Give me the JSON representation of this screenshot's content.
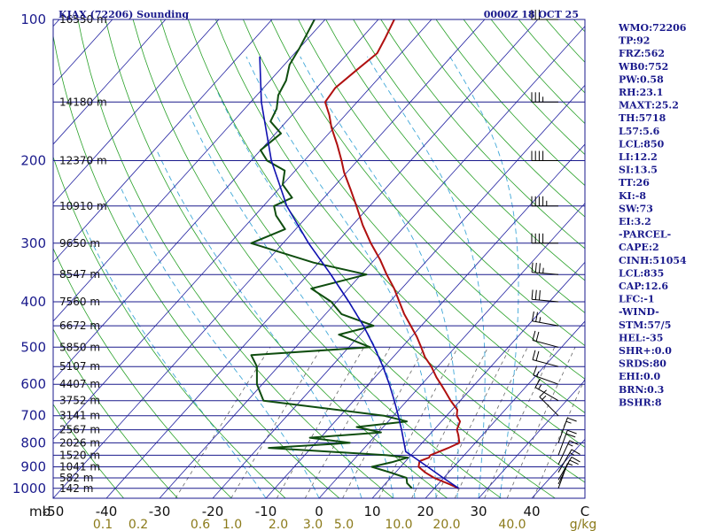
{
  "header": {
    "station": "KJAX (72206) Sounding",
    "time": "0000Z 18 OCT 25"
  },
  "indices": [
    "WMO:72206",
    "TP:92",
    "FRZ:562",
    "WB0:752",
    "PW:0.58",
    "RH:23.1",
    "MAXT:25.2",
    "TH:5718",
    "L57:5.6",
    "LCL:850",
    "LI:12.2",
    "SI:13.5",
    "TT:26",
    "KI:-8",
    "SW:73",
    "EI:3.2",
    "-PARCEL-",
    "CAPE:2",
    "CINH:51054",
    "LCL:835",
    "CAP:12.6",
    "LFC:-1",
    "-WIND-",
    "STM:57/5",
    "HEL:-35",
    "SHR+:0.0",
    "SRDS:80",
    "EHI:0.0",
    "BRN:0.3",
    "BSHR:8"
  ],
  "colors": {
    "temperature": "#b01010",
    "dewpoint": "#0f4d0f",
    "parcel": "#1010b0",
    "isobar": "#1a1a8c",
    "isotherm": "#2020a0",
    "dry_adiabat": "#28a028",
    "moist_adiabat": "#40a8d8",
    "mixing_ratio": "#666666"
  },
  "chart_data": {
    "type": "line",
    "title": "KJAX (72206) Sounding",
    "pressure_labels": [
      {
        "p": 100,
        "label": "100"
      },
      {
        "p": 200,
        "label": "200"
      },
      {
        "p": 300,
        "label": "300"
      },
      {
        "p": 400,
        "label": "400"
      },
      {
        "p": 500,
        "label": "500"
      },
      {
        "p": 600,
        "label": "600"
      },
      {
        "p": 700,
        "label": "700"
      },
      {
        "p": 800,
        "label": "800"
      },
      {
        "p": 900,
        "label": "900"
      },
      {
        "p": 1000,
        "label": "1000"
      }
    ],
    "height_labels": [
      {
        "p": 100,
        "label": "16550 m"
      },
      {
        "p": 150,
        "label": "14180 m"
      },
      {
        "p": 200,
        "label": "12370 m"
      },
      {
        "p": 250,
        "label": "10910 m"
      },
      {
        "p": 300,
        "label": "9650 m"
      },
      {
        "p": 350,
        "label": "8547 m"
      },
      {
        "p": 400,
        "label": "7560 m"
      },
      {
        "p": 450,
        "label": "6672 m"
      },
      {
        "p": 500,
        "label": "5850 m"
      },
      {
        "p": 550,
        "label": "5107 m"
      },
      {
        "p": 600,
        "label": "4407 m"
      },
      {
        "p": 650,
        "label": "3752 m"
      },
      {
        "p": 700,
        "label": "3141 m"
      },
      {
        "p": 750,
        "label": "2567 m"
      },
      {
        "p": 800,
        "label": "2026 m"
      },
      {
        "p": 850,
        "label": "1520 m"
      },
      {
        "p": 900,
        "label": "1041 m"
      },
      {
        "p": 950,
        "label": "582 m"
      },
      {
        "p": 1000,
        "label": "142 m"
      }
    ],
    "pressure_unit": "mb",
    "temperature_ticks": [
      -50,
      -40,
      -30,
      -20,
      -10,
      0,
      10,
      20,
      30,
      40
    ],
    "temperature_tick_labels": [
      "-50",
      "-40",
      "-30",
      "-20",
      "-10",
      "0",
      "10",
      "20",
      "30",
      "40"
    ],
    "temperature_unit": "C",
    "mixing_ratio_labels": [
      "0.1",
      "0.2",
      "0.6",
      "1.0",
      "2.0",
      "3.0",
      "5.0",
      "10.0",
      "20.0",
      "40.0"
    ],
    "mixing_ratio_unit": "g/kg",
    "series": [
      {
        "key": "temperature",
        "points": [
          {
            "p": 1000,
            "t": 24.6
          },
          {
            "p": 975,
            "t": 21.5
          },
          {
            "p": 950,
            "t": 18.2
          },
          {
            "p": 925,
            "t": 15.6
          },
          {
            "p": 900,
            "t": 13.4
          },
          {
            "p": 875,
            "t": 12.6
          },
          {
            "p": 860,
            "t": 13.8
          },
          {
            "p": 850,
            "t": 13.6
          },
          {
            "p": 820,
            "t": 15.8
          },
          {
            "p": 800,
            "t": 17.0
          },
          {
            "p": 770,
            "t": 15.5
          },
          {
            "p": 750,
            "t": 14.3
          },
          {
            "p": 720,
            "t": 13.5
          },
          {
            "p": 700,
            "t": 11.9
          },
          {
            "p": 680,
            "t": 11.0
          },
          {
            "p": 650,
            "t": 8.2
          },
          {
            "p": 620,
            "t": 5.5
          },
          {
            "p": 600,
            "t": 3.6
          },
          {
            "p": 580,
            "t": 1.6
          },
          {
            "p": 550,
            "t": -1.2
          },
          {
            "p": 525,
            "t": -4.0
          },
          {
            "p": 500,
            "t": -6.4
          },
          {
            "p": 475,
            "t": -9.0
          },
          {
            "p": 450,
            "t": -12.0
          },
          {
            "p": 425,
            "t": -15.2
          },
          {
            "p": 400,
            "t": -18.2
          },
          {
            "p": 375,
            "t": -21.4
          },
          {
            "p": 350,
            "t": -25.2
          },
          {
            "p": 325,
            "t": -29.0
          },
          {
            "p": 300,
            "t": -33.5
          },
          {
            "p": 275,
            "t": -38.0
          },
          {
            "p": 250,
            "t": -42.5
          },
          {
            "p": 230,
            "t": -46.5
          },
          {
            "p": 212,
            "t": -50.5
          },
          {
            "p": 200,
            "t": -53.0
          },
          {
            "p": 185,
            "t": -56.5
          },
          {
            "p": 170,
            "t": -60.5
          },
          {
            "p": 160,
            "t": -63.0
          },
          {
            "p": 150,
            "t": -66.0
          },
          {
            "p": 140,
            "t": -66.5
          },
          {
            "p": 128,
            "t": -65.5
          },
          {
            "p": 118,
            "t": -64.5
          },
          {
            "p": 110,
            "t": -65.5
          },
          {
            "p": 100,
            "t": -67.0
          }
        ]
      },
      {
        "key": "dewpoint",
        "points": [
          {
            "p": 1000,
            "t": 15.8
          },
          {
            "p": 975,
            "t": 14.0
          },
          {
            "p": 950,
            "t": 13.0
          },
          {
            "p": 925,
            "t": 9.0
          },
          {
            "p": 900,
            "t": 4.6
          },
          {
            "p": 880,
            "t": 7.5
          },
          {
            "p": 860,
            "t": 9.8
          },
          {
            "p": 850,
            "t": 5.5
          },
          {
            "p": 820,
            "t": -18.0
          },
          {
            "p": 800,
            "t": -3.6
          },
          {
            "p": 780,
            "t": -12.0
          },
          {
            "p": 760,
            "t": 0.5
          },
          {
            "p": 740,
            "t": -5.0
          },
          {
            "p": 720,
            "t": 3.5
          },
          {
            "p": 700,
            "t": -1.8
          },
          {
            "p": 650,
            "t": -27.0
          },
          {
            "p": 600,
            "t": -31.0
          },
          {
            "p": 550,
            "t": -34.0
          },
          {
            "p": 520,
            "t": -37.0
          },
          {
            "p": 500,
            "t": -16.0
          },
          {
            "p": 470,
            "t": -24.0
          },
          {
            "p": 450,
            "t": -19.0
          },
          {
            "p": 425,
            "t": -27.0
          },
          {
            "p": 400,
            "t": -31.0
          },
          {
            "p": 375,
            "t": -37.0
          },
          {
            "p": 350,
            "t": -29.0
          },
          {
            "p": 330,
            "t": -41.0
          },
          {
            "p": 300,
            "t": -56.0
          },
          {
            "p": 280,
            "t": -52.0
          },
          {
            "p": 262,
            "t": -56.0
          },
          {
            "p": 250,
            "t": -58.0
          },
          {
            "p": 240,
            "t": -56.0
          },
          {
            "p": 225,
            "t": -60.0
          },
          {
            "p": 210,
            "t": -62.0
          },
          {
            "p": 200,
            "t": -67.0
          },
          {
            "p": 190,
            "t": -70.0
          },
          {
            "p": 175,
            "t": -69.0
          },
          {
            "p": 165,
            "t": -73.0
          },
          {
            "p": 155,
            "t": -74.0
          },
          {
            "p": 145,
            "t": -76.0
          },
          {
            "p": 135,
            "t": -77.0
          },
          {
            "p": 125,
            "t": -79.0
          },
          {
            "p": 115,
            "t": -80.0
          },
          {
            "p": 100,
            "t": -82.0
          }
        ]
      },
      {
        "key": "parcel",
        "points": [
          {
            "p": 1000,
            "t": 24.6
          },
          {
            "p": 950,
            "t": 19.9
          },
          {
            "p": 900,
            "t": 15.1
          },
          {
            "p": 850,
            "t": 10.0
          },
          {
            "p": 835,
            "t": 8.4
          },
          {
            "p": 800,
            "t": 6.6
          },
          {
            "p": 750,
            "t": 3.9
          },
          {
            "p": 700,
            "t": 0.9
          },
          {
            "p": 650,
            "t": -2.4
          },
          {
            "p": 600,
            "t": -6.1
          },
          {
            "p": 550,
            "t": -10.3
          },
          {
            "p": 500,
            "t": -15.2
          },
          {
            "p": 450,
            "t": -20.9
          },
          {
            "p": 400,
            "t": -27.7
          },
          {
            "p": 350,
            "t": -35.7
          },
          {
            "p": 300,
            "t": -45.2
          },
          {
            "p": 250,
            "t": -55.6
          },
          {
            "p": 200,
            "t": -66.2
          },
          {
            "p": 150,
            "t": -78.0
          },
          {
            "p": 120,
            "t": -86.0
          }
        ]
      }
    ],
    "wind_barbs": [
      {
        "p": 1000,
        "dir": 20,
        "spd": 5
      },
      {
        "p": 980,
        "dir": 25,
        "spd": 10
      },
      {
        "p": 960,
        "dir": 30,
        "spd": 10
      },
      {
        "p": 925,
        "dir": 30,
        "spd": 15
      },
      {
        "p": 890,
        "dir": 25,
        "spd": 15
      },
      {
        "p": 850,
        "dir": 20,
        "spd": 20
      },
      {
        "p": 800,
        "dir": 20,
        "spd": 15
      },
      {
        "p": 700,
        "dir": 315,
        "spd": 15
      },
      {
        "p": 650,
        "dir": 300,
        "spd": 15
      },
      {
        "p": 600,
        "dir": 290,
        "spd": 15
      },
      {
        "p": 550,
        "dir": 285,
        "spd": 20
      },
      {
        "p": 500,
        "dir": 285,
        "spd": 20
      },
      {
        "p": 450,
        "dir": 280,
        "spd": 25
      },
      {
        "p": 400,
        "dir": 275,
        "spd": 30
      },
      {
        "p": 350,
        "dir": 275,
        "spd": 35
      },
      {
        "p": 300,
        "dir": 270,
        "spd": 40
      },
      {
        "p": 250,
        "dir": 270,
        "spd": 45
      },
      {
        "p": 200,
        "dir": 270,
        "spd": 40
      },
      {
        "p": 150,
        "dir": 270,
        "spd": 35
      },
      {
        "p": 100,
        "dir": 270,
        "spd": 30
      }
    ]
  }
}
